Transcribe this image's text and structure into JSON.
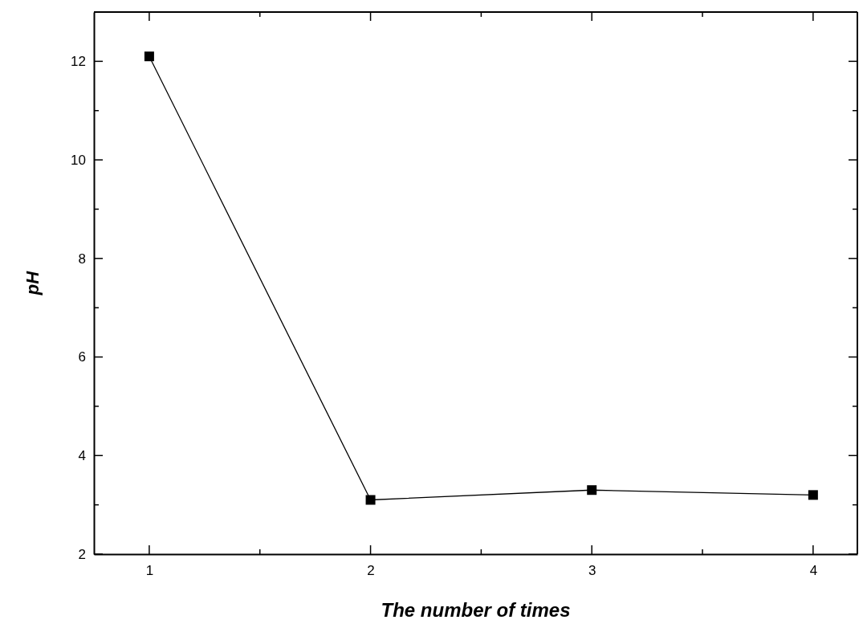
{
  "chart_data": {
    "type": "line",
    "xlabel": "The number of times",
    "ylabel": "pH",
    "x": [
      1,
      2,
      3,
      4
    ],
    "series": [
      {
        "color": "#000000",
        "values": [
          12.1,
          3.1,
          3.3,
          3.2
        ]
      }
    ],
    "xlim": [
      0.75,
      4.2
    ],
    "ylim": [
      2,
      13
    ],
    "xticks": [
      1,
      {
        "value": 1.5,
        "label": null
      },
      2,
      {
        "value": 2.5,
        "label": null
      },
      3,
      {
        "value": 3.5,
        "label": null
      },
      4
    ],
    "yticks": [
      2,
      {
        "value": 3,
        "label": null
      },
      4,
      {
        "value": 5,
        "label": null
      },
      6,
      {
        "value": 7,
        "label": null
      },
      8,
      {
        "value": 9,
        "label": null
      },
      10,
      {
        "value": 11,
        "label": null
      },
      12
    ],
    "marker": "square",
    "line_style": "solid",
    "grid": false
  }
}
